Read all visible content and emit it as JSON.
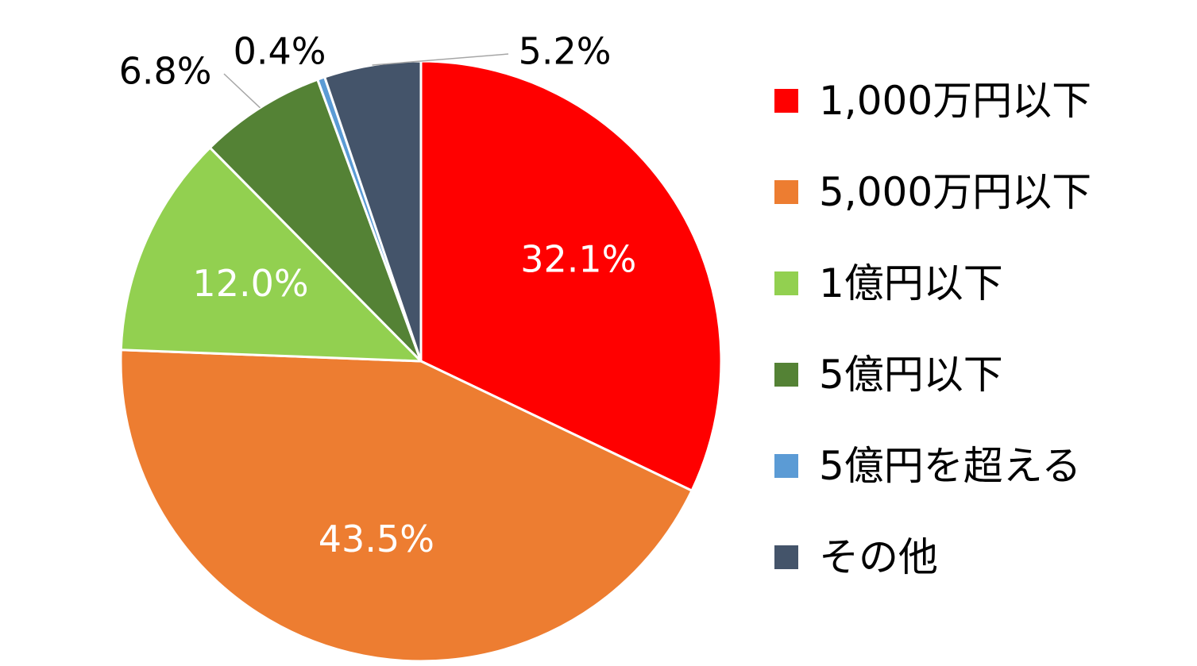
{
  "chart_data": {
    "type": "pie",
    "slices": [
      {
        "label": "1,000万円以下",
        "value": 32.1,
        "display": "32.1%",
        "color": "#ff0000",
        "label_color": "#ffffff",
        "label_inside": true
      },
      {
        "label": "5,000万円以下",
        "value": 43.5,
        "display": "43.5%",
        "color": "#ed7d31",
        "label_color": "#ffffff",
        "label_inside": true
      },
      {
        "label": "1億円以下",
        "value": 12.0,
        "display": "12.0%",
        "color": "#92d050",
        "label_color": "#ffffff",
        "label_inside": true
      },
      {
        "label": "5億円以下",
        "value": 6.8,
        "display": "6.8%",
        "color": "#548235",
        "label_color": "#000000",
        "label_inside": false
      },
      {
        "label": "5億円を超える",
        "value": 0.4,
        "display": "0.4%",
        "color": "#5b9bd5",
        "label_color": "#000000",
        "label_inside": false
      },
      {
        "label": "その他",
        "value": 5.2,
        "display": "5.2%",
        "color": "#44546a",
        "label_color": "#000000",
        "label_inside": false
      }
    ],
    "start_angle": "12 o'clock",
    "direction": "clockwise",
    "legend_position": "right"
  }
}
